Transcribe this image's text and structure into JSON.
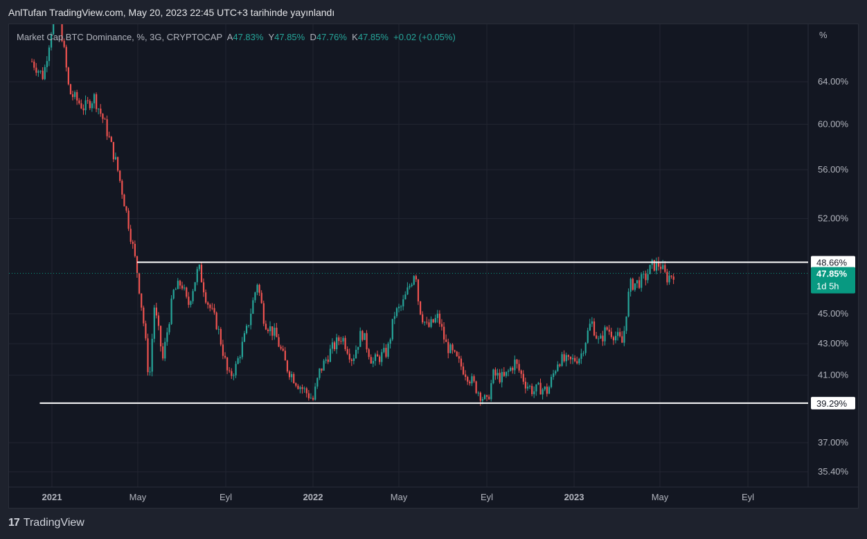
{
  "header": {
    "publish_line": "AnlTufan TradingView.com, May 20, 2023 22:45 UTC+3 tarihinde yayınlandı"
  },
  "legend": {
    "symbol": "Market Cap BTC Dominance, %, 3G, CRYPTOCAP",
    "open_label": "A",
    "open": "47.83%",
    "high_label": "Y",
    "high": "47.85%",
    "low_label": "D",
    "low": "47.76%",
    "close_label": "K",
    "close": "47.85%",
    "change": "+0.02 (+0.05%)"
  },
  "footer": {
    "brand": "TradingView",
    "logo": "17"
  },
  "colors": {
    "up": "#26a69a",
    "down": "#ef5350",
    "background": "#131722",
    "grid": "#232632",
    "price_tag": "#089981"
  },
  "chart_data": {
    "type": "candlestick",
    "symbol": "Market Cap BTC Dominance",
    "interval": "3G",
    "y_unit": "%",
    "y_scale": "log",
    "y_ticks": [
      "35.40%",
      "37.00%",
      "41.00%",
      "43.00%",
      "45.00%",
      "52.00%",
      "56.00%",
      "60.00%",
      "64.00%"
    ],
    "y_tick_values": [
      35.4,
      37.0,
      41.0,
      43.0,
      45.0,
      52.0,
      56.0,
      60.0,
      64.0
    ],
    "x_ticks": [
      "2021",
      "May",
      "Eyl",
      "2022",
      "May",
      "Eyl",
      "2023",
      "May",
      "Eyl"
    ],
    "x_tick_dates": [
      "2021-01-01",
      "2021-05-01",
      "2021-09-01",
      "2022-01-01",
      "2022-05-01",
      "2022-09-01",
      "2023-01-01",
      "2023-05-01",
      "2023-09-01"
    ],
    "x_range": [
      "2020-11-25",
      "2023-11-20"
    ],
    "path_points": [
      [
        "2020-12-04",
        66.0
      ],
      [
        "2020-12-20",
        64.5
      ],
      [
        "2021-01-03",
        70.5
      ],
      [
        "2021-01-10",
        71.5
      ],
      [
        "2021-01-25",
        63.0
      ],
      [
        "2021-02-15",
        61.5
      ],
      [
        "2021-03-01",
        62.5
      ],
      [
        "2021-03-15",
        60.2
      ],
      [
        "2021-04-01",
        56.5
      ],
      [
        "2021-04-15",
        52.5
      ],
      [
        "2021-04-30",
        48.0
      ],
      [
        "2021-05-10",
        44.0
      ],
      [
        "2021-05-17",
        40.5
      ],
      [
        "2021-05-24",
        45.5
      ],
      [
        "2021-06-05",
        42.0
      ],
      [
        "2021-06-20",
        46.5
      ],
      [
        "2021-07-01",
        47.2
      ],
      [
        "2021-07-10",
        45.5
      ],
      [
        "2021-07-25",
        48.3
      ],
      [
        "2021-08-05",
        46.0
      ],
      [
        "2021-08-20",
        44.2
      ],
      [
        "2021-09-05",
        40.8
      ],
      [
        "2021-09-15",
        41.5
      ],
      [
        "2021-10-01",
        44.0
      ],
      [
        "2021-10-15",
        47.2
      ],
      [
        "2021-10-25",
        44.5
      ],
      [
        "2021-11-10",
        43.5
      ],
      [
        "2021-11-25",
        41.5
      ],
      [
        "2021-12-10",
        40.5
      ],
      [
        "2022-01-01",
        39.5
      ],
      [
        "2022-01-10",
        41.2
      ],
      [
        "2022-01-25",
        42.5
      ],
      [
        "2022-02-10",
        43.5
      ],
      [
        "2022-02-25",
        42.0
      ],
      [
        "2022-03-10",
        43.8
      ],
      [
        "2022-03-25",
        41.8
      ],
      [
        "2022-04-15",
        42.5
      ],
      [
        "2022-04-25",
        45.0
      ],
      [
        "2022-05-05",
        45.5
      ],
      [
        "2022-05-20",
        47.5
      ],
      [
        "2022-05-24",
        48.3
      ],
      [
        "2022-05-28",
        46.0
      ],
      [
        "2022-06-01",
        45.0
      ],
      [
        "2022-06-10",
        44.0
      ],
      [
        "2022-06-25",
        44.8
      ],
      [
        "2022-07-05",
        43.0
      ],
      [
        "2022-07-20",
        42.0
      ],
      [
        "2022-08-05",
        41.0
      ],
      [
        "2022-08-20",
        40.0
      ],
      [
        "2022-09-01",
        39.3
      ],
      [
        "2022-09-10",
        41.0
      ],
      [
        "2022-09-25",
        40.8
      ],
      [
        "2022-10-10",
        41.8
      ],
      [
        "2022-10-25",
        40.5
      ],
      [
        "2022-11-05",
        40.0
      ],
      [
        "2022-11-15",
        40.2
      ],
      [
        "2022-11-25",
        40.0
      ],
      [
        "2022-12-10",
        42.0
      ],
      [
        "2022-12-25",
        41.8
      ],
      [
        "2023-01-10",
        42.2
      ],
      [
        "2023-01-25",
        44.5
      ],
      [
        "2023-02-05",
        43.0
      ],
      [
        "2023-02-15",
        44.0
      ],
      [
        "2023-03-01",
        43.5
      ],
      [
        "2023-03-10",
        43.0
      ],
      [
        "2023-03-15",
        45.2
      ],
      [
        "2023-03-20",
        47.0
      ],
      [
        "2023-04-01",
        47.2
      ],
      [
        "2023-04-10",
        47.5
      ],
      [
        "2023-04-20",
        48.4
      ],
      [
        "2023-05-01",
        48.5
      ],
      [
        "2023-05-10",
        47.5
      ],
      [
        "2023-05-20",
        47.85
      ]
    ],
    "lines": [
      {
        "type": "horizontal",
        "value": 48.66,
        "label": "48.66%",
        "from": "2021-04-30"
      },
      {
        "type": "horizontal",
        "value": 39.29,
        "label": "39.29%",
        "from": "2020-12-15"
      }
    ],
    "last_price": {
      "value": 47.85,
      "label": "47.85%",
      "countdown": "1d 5h"
    },
    "axis_unit_label": "%"
  }
}
